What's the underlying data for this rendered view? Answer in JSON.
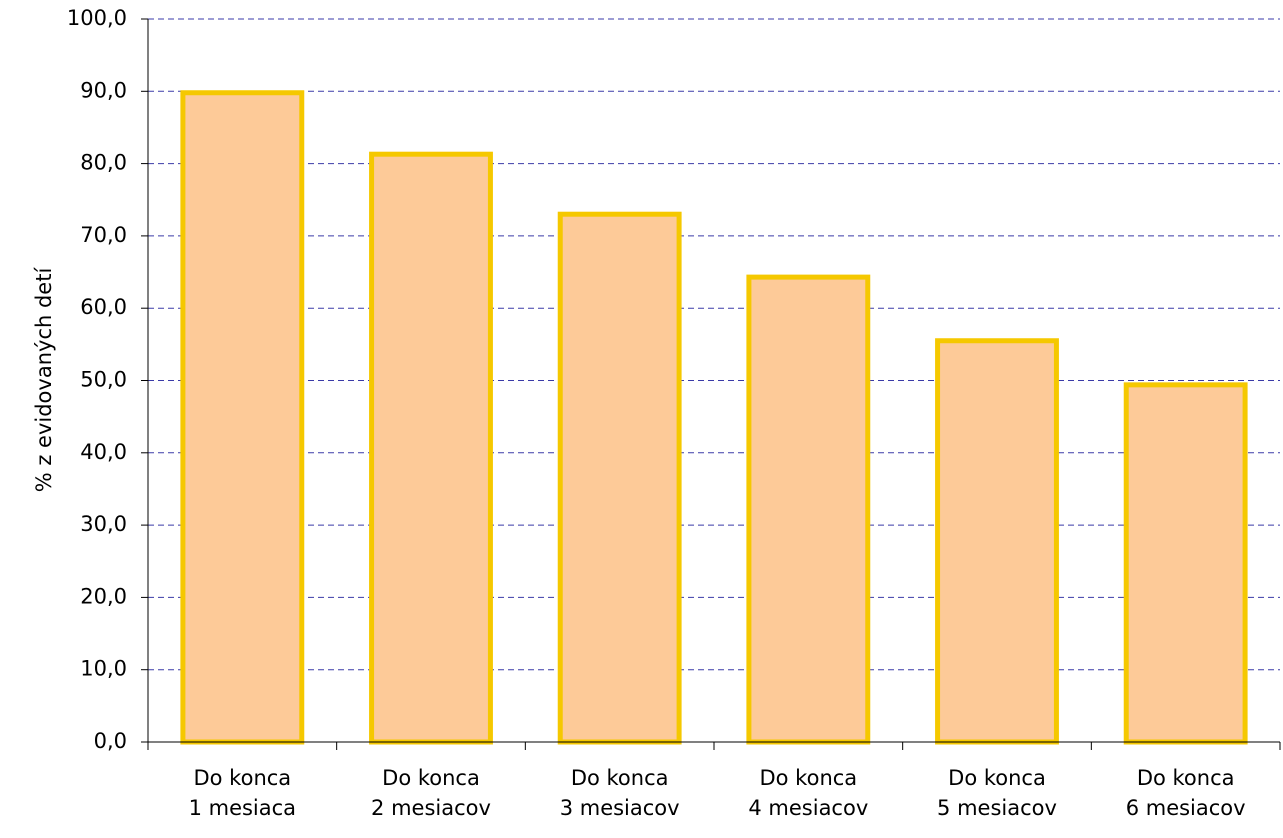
{
  "chart_data": {
    "type": "bar",
    "y_label": "% z evidovaných detí",
    "categories": [
      "Do konca\n1 mesiaca",
      "Do konca\n2 mesiacov",
      "Do konca\n3 mesiacov",
      "Do konca\n4 mesiacov",
      "Do konca\n5 mesiacov",
      "Do konca\n6 mesiacov"
    ],
    "values": [
      89.8,
      81.3,
      73.0,
      64.3,
      55.5,
      49.4
    ],
    "color": "#fdca98",
    "edge_color": "#f5c800",
    "ylim": [
      0,
      100
    ],
    "yticks": [
      {
        "value": 0,
        "label": "0,0"
      },
      {
        "value": 10,
        "label": "10,0"
      },
      {
        "value": 20,
        "label": "20,0"
      },
      {
        "value": 30,
        "label": "30,0"
      },
      {
        "value": 40,
        "label": "40,0"
      },
      {
        "value": 50,
        "label": "50,0"
      },
      {
        "value": 60,
        "label": "60,0"
      },
      {
        "value": 70,
        "label": "70,0"
      },
      {
        "value": 80,
        "label": "80,0"
      },
      {
        "value": 90,
        "label": "90,0"
      },
      {
        "value": 100,
        "label": "100,0"
      }
    ],
    "grid": true,
    "grid_color": "#3a3aa8"
  }
}
